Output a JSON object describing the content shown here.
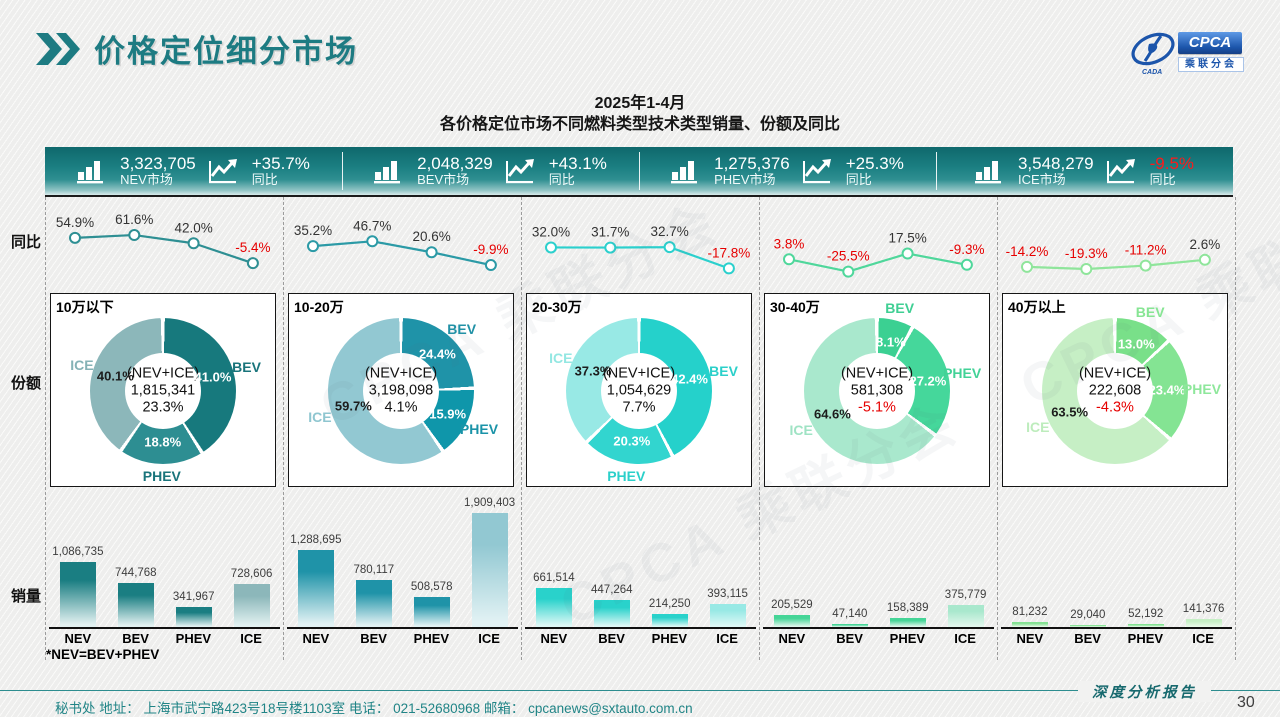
{
  "page": {
    "title": "价格定位细分市场",
    "subtitle1": "2025年1-4月",
    "subtitle2": "各价格定位市场不同燃料类型技术类型销量、份额及同比",
    "footnote": "*NEV=BEV+PHEV",
    "watermark": "CPCA 乘联分会"
  },
  "logo": {
    "cpca": "CPCA",
    "subtext": "乘联分会",
    "cada": "CADA"
  },
  "row_labels": [
    "同比",
    "份额",
    "销量"
  ],
  "kpi_bar": {
    "segments": [
      {
        "key": "nev-market",
        "value": "3,323,705",
        "label": "NEV市场",
        "pct": "+35.7%",
        "pct_label": "同比",
        "pct_color": "#ffffff"
      },
      {
        "key": "bev-market",
        "value": "2,048,329",
        "label": "BEV市场",
        "pct": "+43.1%",
        "pct_label": "同比",
        "pct_color": "#ffffff"
      },
      {
        "key": "phev-market",
        "value": "1,275,376",
        "label": "PHEV市场",
        "pct": "+25.3%",
        "pct_label": "同比",
        "pct_color": "#ffffff"
      },
      {
        "key": "ice-market",
        "value": "3,548,279",
        "label": "ICE市场",
        "pct": "-9.5%",
        "pct_label": "同比",
        "pct_color": "#ff1a1a"
      }
    ]
  },
  "chart_data": [
    {
      "segment": "10万以下",
      "yoy_line": {
        "type": "line",
        "categories": [
          "NEV",
          "BEV",
          "PHEV",
          "ICE"
        ],
        "values": [
          54.9,
          61.6,
          42.0,
          -5.4
        ],
        "labels": [
          "54.9%",
          "61.6%",
          "42.0%",
          "-5.4%"
        ],
        "label_colors": [
          "#333333",
          "#333333",
          "#333333",
          "#e60000"
        ],
        "line_color": "#2e8f93",
        "unit": "%"
      },
      "share_donut": {
        "type": "pie",
        "center_label": "(NEV+ICE)",
        "center_value": "1,815,341",
        "center_pct": "23.3%",
        "center_pct_color": "#111111",
        "slices": [
          {
            "name": "BEV",
            "pct": 41.0,
            "label": "41.0%",
            "color": "#17797d",
            "pct_color": "#ffffff",
            "name_color": "#19747b"
          },
          {
            "name": "PHEV",
            "pct": 18.8,
            "label": "18.8%",
            "color": "#2d8e92",
            "pct_color": "#ffffff",
            "name_color": "#19747b"
          },
          {
            "name": "ICE",
            "pct": 40.1,
            "label": "40.1%",
            "color": "#8cb7ba",
            "pct_color": "#1c1c1c",
            "name_color": "#85b2b6"
          }
        ]
      },
      "sales_bar": {
        "type": "bar",
        "categories": [
          "NEV",
          "BEV",
          "PHEV",
          "ICE"
        ],
        "values": [
          1086735,
          744768,
          341967,
          728606
        ],
        "labels": [
          "1,086,735",
          "744,768",
          "341,967",
          "728,606"
        ],
        "bar_tops": [
          "#1a7e82",
          "#1a7e82",
          "#1a7e82",
          "#8cb7ba"
        ],
        "bar_bottom": "#e2f1f1"
      }
    },
    {
      "segment": "10-20万",
      "yoy_line": {
        "type": "line",
        "categories": [
          "NEV",
          "BEV",
          "PHEV",
          "ICE"
        ],
        "values": [
          35.2,
          46.7,
          20.6,
          -9.9
        ],
        "labels": [
          "35.2%",
          "46.7%",
          "20.6%",
          "-9.9%"
        ],
        "label_colors": [
          "#333333",
          "#333333",
          "#333333",
          "#e60000"
        ],
        "line_color": "#2b9aa6",
        "unit": "%"
      },
      "share_donut": {
        "type": "pie",
        "center_label": "(NEV+ICE)",
        "center_value": "3,198,098",
        "center_pct": "4.1%",
        "center_pct_color": "#111111",
        "slices": [
          {
            "name": "BEV",
            "pct": 24.4,
            "label": "24.4%",
            "color": "#1f93a8",
            "pct_color": "#ffffff",
            "name_color": "#2191a6"
          },
          {
            "name": "PHEV",
            "pct": 15.9,
            "label": "15.9%",
            "color": "#0f96aa",
            "pct_color": "#ffffff",
            "name_color": "#1a93a8"
          },
          {
            "name": "ICE",
            "pct": 59.7,
            "label": "59.7%",
            "color": "#92c8d2",
            "pct_color": "#1c1c1c",
            "name_color": "#8fc6d0"
          }
        ]
      },
      "sales_bar": {
        "type": "bar",
        "categories": [
          "NEV",
          "BEV",
          "PHEV",
          "ICE"
        ],
        "values": [
          1288695,
          780117,
          508578,
          1909403
        ],
        "labels": [
          "1,288,695",
          "780,117",
          "508,578",
          "1,909,403"
        ],
        "bar_tops": [
          "#1f93a8",
          "#1f93a8",
          "#1f93a8",
          "#92c8d2"
        ],
        "bar_bottom": "#e2f2f4"
      }
    },
    {
      "segment": "20-30万",
      "yoy_line": {
        "type": "line",
        "categories": [
          "NEV",
          "BEV",
          "PHEV",
          "ICE"
        ],
        "values": [
          32.0,
          31.7,
          32.7,
          -17.8
        ],
        "labels": [
          "32.0%",
          "31.7%",
          "32.7%",
          "-17.8%"
        ],
        "label_colors": [
          "#333333",
          "#333333",
          "#333333",
          "#e60000"
        ],
        "line_color": "#2bd0cd",
        "unit": "%"
      },
      "share_donut": {
        "type": "pie",
        "center_label": "(NEV+ICE)",
        "center_value": "1,054,629",
        "center_pct": "7.7%",
        "center_pct_color": "#111111",
        "slices": [
          {
            "name": "BEV",
            "pct": 42.4,
            "label": "42.4%",
            "color": "#25d1cb",
            "pct_color": "#ffffff",
            "name_color": "#2bd0ca"
          },
          {
            "name": "PHEV",
            "pct": 20.3,
            "label": "20.3%",
            "color": "#32d5cf",
            "pct_color": "#ffffff",
            "name_color": "#2bd0ca"
          },
          {
            "name": "ICE",
            "pct": 37.3,
            "label": "37.3%",
            "color": "#98e9e5",
            "pct_color": "#1c1c1c",
            "name_color": "#93e7e2"
          }
        ]
      },
      "sales_bar": {
        "type": "bar",
        "categories": [
          "NEV",
          "BEV",
          "PHEV",
          "ICE"
        ],
        "values": [
          661514,
          447264,
          214250,
          393115
        ],
        "labels": [
          "661,514",
          "447,264",
          "214,250",
          "393,115"
        ],
        "bar_tops": [
          "#29d2cb",
          "#29d2cb",
          "#29d2cb",
          "#98e9e5"
        ],
        "bar_bottom": "#def8f6"
      }
    },
    {
      "segment": "30-40万",
      "yoy_line": {
        "type": "line",
        "categories": [
          "NEV",
          "BEV",
          "PHEV",
          "ICE"
        ],
        "values": [
          3.8,
          -25.5,
          17.5,
          -9.3
        ],
        "labels": [
          "3.8%",
          "-25.5%",
          "17.5%",
          "-9.3%"
        ],
        "label_colors": [
          "#e60000",
          "#e60000",
          "#333333",
          "#e60000"
        ],
        "line_color": "#4fd79b",
        "unit": "%"
      },
      "share_donut": {
        "type": "pie",
        "center_label": "(NEV+ICE)",
        "center_value": "581,308",
        "center_pct": "-5.1%",
        "center_pct_color": "#e60000",
        "slices": [
          {
            "name": "BEV",
            "pct": 8.1,
            "label": "8.1%",
            "color": "#3bd092",
            "pct_color": "#ffffff",
            "name_color": "#3fcf93"
          },
          {
            "name": "PHEV",
            "pct": 27.2,
            "label": "27.2%",
            "color": "#45d79b",
            "pct_color": "#ffffff",
            "name_color": "#42d297"
          },
          {
            "name": "ICE",
            "pct": 64.6,
            "label": "64.6%",
            "color": "#a9e8cd",
            "pct_color": "#1c1c1c",
            "name_color": "#9fe3c4"
          }
        ]
      },
      "sales_bar": {
        "type": "bar",
        "categories": [
          "NEV",
          "BEV",
          "PHEV",
          "ICE"
        ],
        "values": [
          205529,
          47140,
          158389,
          375779
        ],
        "labels": [
          "205,529",
          "47,140",
          "158,389",
          "375,779"
        ],
        "bar_tops": [
          "#45d597",
          "#45d597",
          "#45d597",
          "#a9e8cd"
        ],
        "bar_bottom": "#e2f7ed"
      }
    },
    {
      "segment": "40万以上",
      "yoy_line": {
        "type": "line",
        "categories": [
          "NEV",
          "BEV",
          "PHEV",
          "ICE"
        ],
        "values": [
          -14.2,
          -19.3,
          -11.2,
          2.6
        ],
        "labels": [
          "-14.2%",
          "-19.3%",
          "-11.2%",
          "2.6%"
        ],
        "label_colors": [
          "#e60000",
          "#e60000",
          "#e60000",
          "#333333"
        ],
        "line_color": "#8fe59b",
        "unit": "%"
      },
      "share_donut": {
        "type": "pie",
        "center_label": "(NEV+ICE)",
        "center_value": "222,608",
        "center_pct": "-4.3%",
        "center_pct_color": "#e60000",
        "slices": [
          {
            "name": "BEV",
            "pct": 13.0,
            "label": "13.0%",
            "color": "#79e089",
            "pct_color": "#ffffff",
            "name_color": "#86e593"
          },
          {
            "name": "PHEV",
            "pct": 23.4,
            "label": "23.4%",
            "color": "#84e493",
            "pct_color": "#ffffff",
            "name_color": "#8ee79b"
          },
          {
            "name": "ICE",
            "pct": 63.5,
            "label": "63.5%",
            "color": "#c6efc5",
            "pct_color": "#1c1c1c",
            "name_color": "#bdecbc"
          }
        ]
      },
      "sales_bar": {
        "type": "bar",
        "categories": [
          "NEV",
          "BEV",
          "PHEV",
          "ICE"
        ],
        "values": [
          81232,
          29040,
          52192,
          141376
        ],
        "labels": [
          "81,232",
          "29,040",
          "52,192",
          "141,376"
        ],
        "bar_tops": [
          "#83e292",
          "#83e292",
          "#83e292",
          "#c6efc5"
        ],
        "bar_bottom": "#eafaea"
      }
    }
  ],
  "footer": {
    "text": "秘书处   地址： 上海市武宁路423号18号楼1103室  电话： 021-52680968   邮箱： cpcanews@sxtauto.com.cn",
    "report_label": "深度分析报告",
    "page_number": "30"
  }
}
